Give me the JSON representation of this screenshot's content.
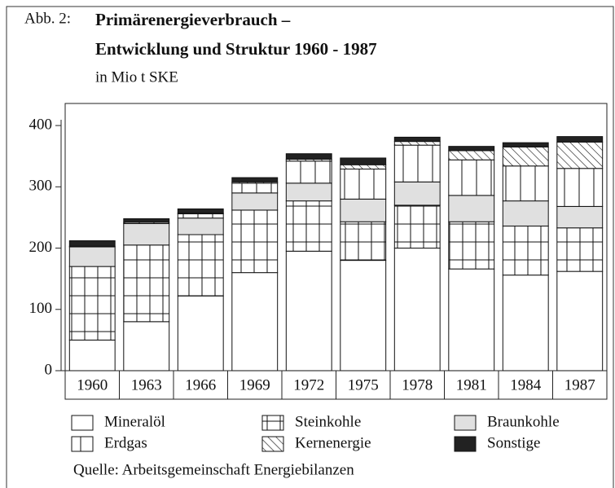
{
  "chart_data": {
    "type": "stacked_bar",
    "label": "Abb. 2:",
    "title": [
      "Primärenergieverbrauch –",
      "Entwicklung und Struktur 1960 - 1987"
    ],
    "subtitle": "in Mio t SKE",
    "source": "Quelle: Arbeitsgemeinschaft Energiebilanzen",
    "categories": [
      "1960",
      "1963",
      "1966",
      "1969",
      "1972",
      "1975",
      "1978",
      "1981",
      "1984",
      "1987"
    ],
    "series": [
      {
        "name": "Mineralöl",
        "color": "#ffffff",
        "pattern": "none",
        "values": [
          50,
          80,
          122,
          160,
          195,
          180,
          200,
          166,
          156,
          162
        ]
      },
      {
        "name": "Steinkohle",
        "color": "#ffffff",
        "pattern": "grid",
        "values": [
          120,
          125,
          100,
          102,
          82,
          63,
          70,
          77,
          80,
          71
        ]
      },
      {
        "name": "Braunkohle",
        "color": "#e0e0e0",
        "pattern": "none",
        "values": [
          32,
          35,
          27,
          28,
          29,
          37,
          38,
          43,
          41,
          35
        ]
      },
      {
        "name": "Erdgas",
        "color": "#ffffff",
        "pattern": "vertical",
        "values": [
          1,
          2,
          7,
          16,
          36,
          49,
          60,
          58,
          57,
          62
        ]
      },
      {
        "name": "Kernenergie",
        "color": "#ffffff",
        "pattern": "diagonal",
        "values": [
          0,
          0,
          1,
          2,
          3,
          7,
          6,
          15,
          31,
          43
        ]
      },
      {
        "name": "Sonstige",
        "color": "#222222",
        "pattern": "none",
        "values": [
          9,
          6,
          7,
          7,
          9,
          11,
          7,
          7,
          7,
          9
        ]
      }
    ],
    "legend_order": [
      0,
      1,
      2,
      3,
      4,
      5
    ],
    "ylim": [
      0,
      436
    ],
    "yticks": [
      0,
      100,
      200,
      300,
      400
    ]
  }
}
